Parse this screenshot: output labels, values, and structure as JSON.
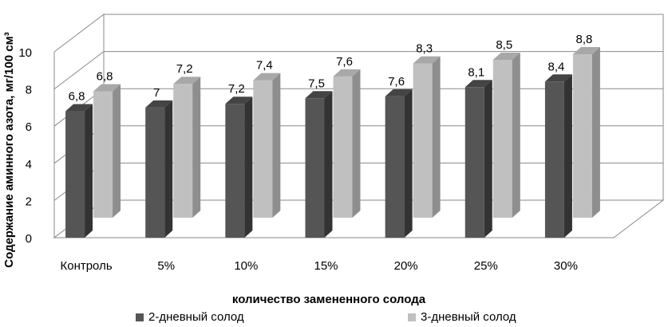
{
  "chart_data": {
    "type": "bar",
    "style": "3d-clustered-column",
    "categories": [
      "Контроль",
      "5%",
      "10%",
      "15%",
      "20%",
      "25%",
      "30%"
    ],
    "series": [
      {
        "name": "2-дневный солод",
        "values": [
          6.8,
          7,
          7.2,
          7.5,
          7.6,
          8.1,
          8.4
        ],
        "labels": [
          "6,8",
          "7",
          "7,2",
          "7,5",
          "7,6",
          "8,1",
          "8,4"
        ],
        "color": "#555555"
      },
      {
        "name": "3-дневный солод",
        "values": [
          6.8,
          7.2,
          7.4,
          7.6,
          8.3,
          8.5,
          8.8
        ],
        "labels": [
          "6,8",
          "7,2",
          "7,4",
          "7,6",
          "8,3",
          "8,5",
          "8,8"
        ],
        "color": "#c0c0c0"
      }
    ],
    "xlabel": "количество замененного солода",
    "ylabel": "Содержание  аминного азота, мг/100 см³",
    "yticks": [
      "0",
      "2",
      "4",
      "6",
      "8",
      "10"
    ],
    "ylim": [
      0,
      10
    ],
    "grid": true,
    "legend_position": "bottom"
  }
}
